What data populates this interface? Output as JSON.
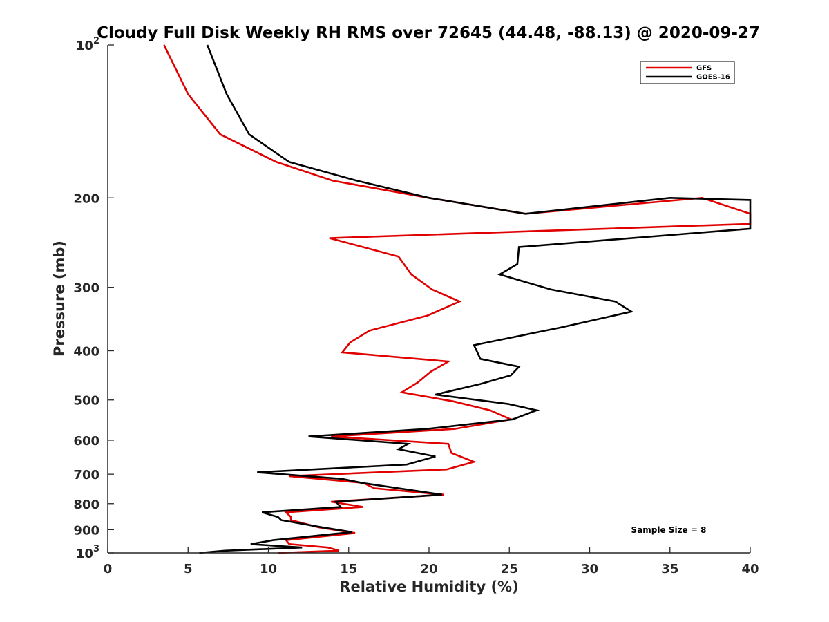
{
  "chart_data": {
    "type": "line",
    "title": "Cloudy Full Disk Weekly RH RMS over 72645 (44.48, -88.13) @ 2020-09-27",
    "xlabel": "Relative Humidity (%)",
    "ylabel": "Pressure (mb)",
    "xlim": [
      0,
      40
    ],
    "ylim": [
      1000,
      100
    ],
    "y_scale": "log",
    "y_reversed": true,
    "x_ticks": [
      "0",
      "5",
      "10",
      "15",
      "20",
      "25",
      "30",
      "35",
      "40"
    ],
    "y_ticks": [
      {
        "value": 100,
        "base": "10",
        "exp": "2"
      },
      {
        "value": 200,
        "label": "200"
      },
      {
        "value": 300,
        "label": "300"
      },
      {
        "value": 400,
        "label": "400"
      },
      {
        "value": 500,
        "label": "500"
      },
      {
        "value": 600,
        "label": "600"
      },
      {
        "value": 700,
        "label": "700"
      },
      {
        "value": 800,
        "label": "800"
      },
      {
        "value": 900,
        "label": "900"
      },
      {
        "value": 1000,
        "base": "10",
        "exp": "3"
      }
    ],
    "grid": false,
    "legend_position": "top-right",
    "annotation": "Sample Size = 8",
    "series": [
      {
        "name": "GFS",
        "color": "#e00000",
        "points": [
          [
            3.5,
            100
          ],
          [
            5,
            125
          ],
          [
            7,
            150
          ],
          [
            10.5,
            170
          ],
          [
            14,
            185
          ],
          [
            20,
            200
          ],
          [
            26,
            215
          ],
          [
            37,
            200
          ],
          [
            40,
            215
          ],
          [
            40,
            225
          ],
          [
            13.8,
            240
          ],
          [
            18.1,
            261
          ],
          [
            18.9,
            283
          ],
          [
            20.2,
            303
          ],
          [
            21.9,
            320
          ],
          [
            19.9,
            341
          ],
          [
            16.3,
            365
          ],
          [
            15.1,
            385
          ],
          [
            14.6,
            403
          ],
          [
            21.2,
            420
          ],
          [
            20.1,
            440
          ],
          [
            19.3,
            462
          ],
          [
            18.3,
            483
          ],
          [
            21.5,
            503
          ],
          [
            23.8,
            524
          ],
          [
            25.1,
            546
          ],
          [
            21.6,
            570
          ],
          [
            13.9,
            590
          ],
          [
            21.2,
            610
          ],
          [
            21.4,
            636
          ],
          [
            22.8,
            662
          ],
          [
            21.1,
            685
          ],
          [
            11.3,
            706
          ],
          [
            15.9,
            728
          ],
          [
            16.6,
            746
          ],
          [
            20.9,
            768
          ],
          [
            13.9,
            793
          ],
          [
            15.9,
            812
          ],
          [
            11.1,
            832
          ],
          [
            11.4,
            850
          ],
          [
            11.4,
            862
          ],
          [
            13.1,
            890
          ],
          [
            15.4,
            914
          ],
          [
            11.1,
            944
          ],
          [
            11.3,
            961
          ],
          [
            13.7,
            976
          ],
          [
            14.4,
            990
          ],
          [
            10.6,
            1000
          ]
        ]
      },
      {
        "name": "GOES-16",
        "color": "#000000",
        "points": [
          [
            6.2,
            100
          ],
          [
            7.4,
            125
          ],
          [
            8.8,
            150
          ],
          [
            11.3,
            170
          ],
          [
            15.5,
            185
          ],
          [
            20,
            200
          ],
          [
            26,
            215
          ],
          [
            35,
            200
          ],
          [
            40,
            202
          ],
          [
            40,
            230
          ],
          [
            25.6,
            250
          ],
          [
            25.5,
            270
          ],
          [
            24.4,
            283
          ],
          [
            27.6,
            303
          ],
          [
            31.6,
            320
          ],
          [
            32.6,
            335
          ],
          [
            28.2,
            360
          ],
          [
            22.8,
            390
          ],
          [
            23.2,
            415
          ],
          [
            25.6,
            430
          ],
          [
            25.1,
            447
          ],
          [
            23.2,
            465
          ],
          [
            20.4,
            488
          ],
          [
            24.9,
            509
          ],
          [
            26.7,
            524
          ],
          [
            25.2,
            546
          ],
          [
            19.9,
            570
          ],
          [
            12.5,
            590
          ],
          [
            18.7,
            610
          ],
          [
            18.1,
            625
          ],
          [
            20.4,
            646
          ],
          [
            18.6,
            670
          ],
          [
            9.3,
            694
          ],
          [
            14.6,
            715
          ],
          [
            15.8,
            728
          ],
          [
            20.8,
            768
          ],
          [
            14.2,
            793
          ],
          [
            14.5,
            812
          ],
          [
            9.6,
            832
          ],
          [
            10.6,
            850
          ],
          [
            10.8,
            862
          ],
          [
            13.3,
            890
          ],
          [
            15.2,
            910
          ],
          [
            10.3,
            944
          ],
          [
            8.9,
            961
          ],
          [
            12.1,
            976
          ],
          [
            7.3,
            990
          ],
          [
            5.7,
            1000
          ]
        ]
      }
    ]
  }
}
